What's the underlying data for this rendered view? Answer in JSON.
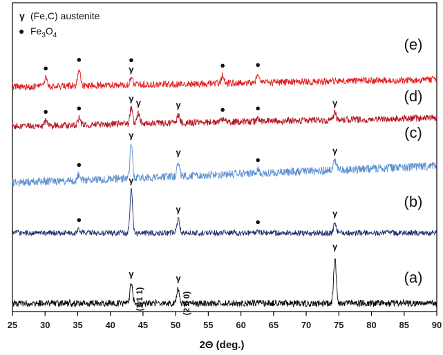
{
  "chart_data": {
    "type": "line",
    "xlabel": "2Θ (deg.)",
    "xlim": [
      25,
      90
    ],
    "x_ticks": [
      25,
      30,
      35,
      40,
      45,
      50,
      55,
      60,
      65,
      70,
      75,
      80,
      85,
      90
    ],
    "yaxis_labels": false,
    "legend": {
      "placement": "top-left",
      "entries": [
        {
          "symbol": "γ",
          "text": "(Fe,C) austenite"
        },
        {
          "symbol": "●",
          "text": "Fe",
          "sub1": "3",
          "mid": "O",
          "sub2": "4"
        }
      ]
    },
    "symbols": {
      "austenite": "γ",
      "magnetite": "●"
    },
    "series": [
      {
        "name": "(a)",
        "color": "#000000",
        "peaks": [
          {
            "x": 43.2,
            "height": 28,
            "mark": "γ",
            "hkl": "(1 1 1)"
          },
          {
            "x": 50.4,
            "height": 22,
            "mark": "γ",
            "hkl": "(2 0 0)"
          },
          {
            "x": 74.4,
            "height": 68,
            "mark": "γ"
          }
        ]
      },
      {
        "name": "(b)",
        "color": "#1f2d6b",
        "peaks": [
          {
            "x": 35.2,
            "height": 5,
            "mark": "●"
          },
          {
            "x": 43.2,
            "height": 62,
            "mark": "γ"
          },
          {
            "x": 50.4,
            "height": 20,
            "mark": "γ"
          },
          {
            "x": 62.6,
            "height": 2,
            "mark": "●"
          },
          {
            "x": 74.4,
            "height": 14,
            "mark": "γ"
          }
        ]
      },
      {
        "name": "(c)",
        "color": "#5b8fd1",
        "peaks": [
          {
            "x": 35.2,
            "height": 8,
            "mark": "●"
          },
          {
            "x": 43.2,
            "height": 48,
            "mark": "γ"
          },
          {
            "x": 50.4,
            "height": 20,
            "mark": "γ"
          },
          {
            "x": 62.6,
            "height": 5,
            "mark": "●"
          },
          {
            "x": 74.4,
            "height": 14,
            "mark": "γ"
          }
        ]
      },
      {
        "name": "(d)",
        "color": "#b3121f",
        "peaks": [
          {
            "x": 30.1,
            "height": 6,
            "mark": "●"
          },
          {
            "x": 35.2,
            "height": 10,
            "mark": "●"
          },
          {
            "x": 43.2,
            "height": 22,
            "mark": "γ"
          },
          {
            "x": 44.3,
            "height": 16,
            "mark": "γ"
          },
          {
            "x": 50.4,
            "height": 12,
            "mark": "γ"
          },
          {
            "x": 57.2,
            "height": 4,
            "mark": "●"
          },
          {
            "x": 62.6,
            "height": 5,
            "mark": "●"
          },
          {
            "x": 74.4,
            "height": 10,
            "mark": "γ"
          }
        ]
      },
      {
        "name": "(e)",
        "color": "#e31a1c",
        "peaks": [
          {
            "x": 30.1,
            "height": 12,
            "mark": "●"
          },
          {
            "x": 35.2,
            "height": 24,
            "mark": "●"
          },
          {
            "x": 43.2,
            "height": 10,
            "mark": "●γ"
          },
          {
            "x": 57.2,
            "height": 12,
            "mark": "●"
          },
          {
            "x": 62.6,
            "height": 12,
            "mark": "●"
          }
        ]
      }
    ]
  }
}
